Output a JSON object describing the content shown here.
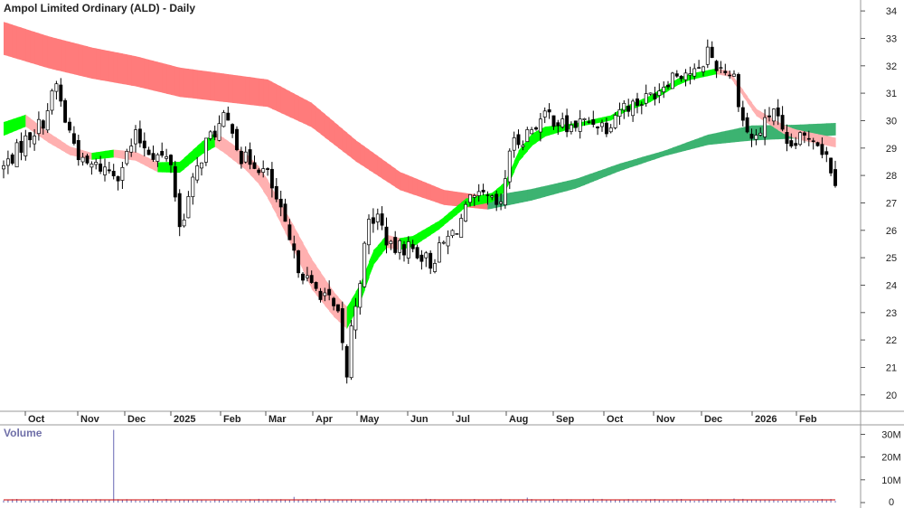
{
  "chart_data": {
    "type": "candlestick",
    "title": "Ampol Limited Ordinary (ALD) - Daily",
    "y_ticks": [
      20,
      21,
      22,
      23,
      24,
      25,
      26,
      27,
      28,
      29,
      30,
      31,
      32,
      33,
      34
    ],
    "ylim": [
      19.4,
      34.4
    ],
    "x_ticks": [
      "Oct",
      "Nov",
      "Dec",
      "2025",
      "Feb",
      "Mar",
      "Apr",
      "May",
      "Jun",
      "Jul",
      "Aug",
      "Sep",
      "Oct",
      "Nov",
      "Dec",
      "2026",
      "Feb"
    ],
    "price_path": [
      [
        0,
        28.3
      ],
      [
        5,
        29.3
      ],
      [
        9,
        30.0
      ],
      [
        12,
        31.3
      ],
      [
        14,
        30.0
      ],
      [
        18,
        28.4
      ],
      [
        22,
        28.3
      ],
      [
        26,
        28.1
      ],
      [
        30,
        29.4
      ],
      [
        34,
        28.8
      ],
      [
        38,
        28.5
      ],
      [
        40,
        26.1
      ],
      [
        43,
        27.7
      ],
      [
        46,
        29.2
      ],
      [
        50,
        30.0
      ],
      [
        52,
        29.8
      ],
      [
        54,
        28.6
      ],
      [
        57,
        28.5
      ],
      [
        60,
        28.0
      ],
      [
        63,
        26.6
      ],
      [
        66,
        25.0
      ],
      [
        70,
        23.9
      ],
      [
        73,
        23.7
      ],
      [
        76,
        22.8
      ],
      [
        78,
        20.7
      ],
      [
        79,
        22.4
      ],
      [
        81,
        24.3
      ],
      [
        83,
        26.3
      ],
      [
        85,
        26.5
      ],
      [
        88,
        25.3
      ],
      [
        92,
        25.4
      ],
      [
        95,
        25.1
      ],
      [
        97,
        24.8
      ],
      [
        100,
        25.5
      ],
      [
        103,
        26.1
      ],
      [
        106,
        27.0
      ],
      [
        109,
        27.2
      ],
      [
        111,
        27.0
      ],
      [
        113,
        26.8
      ],
      [
        115,
        29.0
      ],
      [
        118,
        29.4
      ],
      [
        121,
        29.9
      ],
      [
        124,
        30.2
      ],
      [
        128,
        29.7
      ],
      [
        131,
        29.9
      ],
      [
        134,
        30.0
      ],
      [
        137,
        29.8
      ],
      [
        140,
        30.5
      ],
      [
        143,
        30.6
      ],
      [
        146,
        30.8
      ],
      [
        149,
        31.2
      ],
      [
        152,
        31.7
      ],
      [
        155,
        31.8
      ],
      [
        158,
        31.7
      ],
      [
        160,
        32.6
      ],
      [
        162,
        32.0
      ],
      [
        164,
        31.9
      ],
      [
        166,
        31.6
      ],
      [
        168,
        30.0
      ],
      [
        170,
        29.3
      ],
      [
        172,
        29.6
      ],
      [
        175,
        30.5
      ],
      [
        178,
        28.9
      ],
      [
        181,
        29.3
      ],
      [
        184,
        29.5
      ],
      [
        187,
        28.7
      ],
      [
        189,
        27.9
      ]
    ],
    "bands": [
      {
        "name": "long-term",
        "up_color": "#3cb371",
        "down_color": "#ff7b7b",
        "center": [
          [
            0,
            33.0
          ],
          [
            10,
            32.5
          ],
          [
            20,
            32.1
          ],
          [
            30,
            31.8
          ],
          [
            40,
            31.4
          ],
          [
            50,
            31.2
          ],
          [
            60,
            31.0
          ],
          [
            70,
            30.2
          ],
          [
            80,
            28.9
          ],
          [
            90,
            27.8
          ],
          [
            100,
            27.2
          ],
          [
            110,
            27.0
          ],
          [
            120,
            27.3
          ],
          [
            130,
            27.7
          ],
          [
            140,
            28.3
          ],
          [
            150,
            28.8
          ],
          [
            160,
            29.3
          ],
          [
            170,
            29.55
          ],
          [
            180,
            29.6
          ],
          [
            190,
            29.7
          ]
        ],
        "width": [
          [
            0,
            1.2
          ],
          [
            60,
            1.0
          ],
          [
            100,
            0.55
          ],
          [
            130,
            0.35
          ],
          [
            150,
            0.2
          ],
          [
            170,
            0.55
          ],
          [
            190,
            0.45
          ]
        ]
      },
      {
        "name": "short-term",
        "up_color": "#00ff00",
        "down_color": "#ffb0b0",
        "center": [
          [
            0,
            29.7
          ],
          [
            5,
            30.0
          ],
          [
            10,
            29.4
          ],
          [
            15,
            28.9
          ],
          [
            20,
            28.7
          ],
          [
            25,
            28.8
          ],
          [
            30,
            28.7
          ],
          [
            35,
            28.3
          ],
          [
            40,
            28.3
          ],
          [
            45,
            29.0
          ],
          [
            48,
            29.3
          ],
          [
            50,
            29.1
          ],
          [
            55,
            28.5
          ],
          [
            58,
            28.0
          ],
          [
            60,
            27.5
          ],
          [
            65,
            26.0
          ],
          [
            70,
            24.4
          ],
          [
            75,
            23.3
          ],
          [
            78,
            22.8
          ],
          [
            81,
            23.7
          ],
          [
            84,
            25.0
          ],
          [
            87,
            25.6
          ],
          [
            90,
            25.5
          ],
          [
            93,
            25.6
          ],
          [
            96,
            25.9
          ],
          [
            99,
            26.2
          ],
          [
            102,
            26.6
          ],
          [
            105,
            27.0
          ],
          [
            108,
            27.1
          ],
          [
            111,
            27.2
          ],
          [
            114,
            27.6
          ],
          [
            117,
            28.7
          ],
          [
            120,
            29.3
          ],
          [
            123,
            29.6
          ],
          [
            126,
            29.7
          ],
          [
            129,
            29.8
          ],
          [
            132,
            29.9
          ],
          [
            135,
            30.0
          ],
          [
            138,
            30.1
          ],
          [
            141,
            30.4
          ],
          [
            144,
            30.6
          ],
          [
            147,
            30.8
          ],
          [
            150,
            31.1
          ],
          [
            153,
            31.4
          ],
          [
            156,
            31.6
          ],
          [
            159,
            31.7
          ],
          [
            162,
            31.8
          ],
          [
            165,
            31.7
          ],
          [
            168,
            31.0
          ],
          [
            171,
            30.3
          ],
          [
            174,
            30.0
          ],
          [
            177,
            29.7
          ],
          [
            180,
            29.5
          ],
          [
            183,
            29.4
          ],
          [
            186,
            29.3
          ],
          [
            189,
            29.2
          ]
        ],
        "width": [
          [
            0,
            0.5
          ],
          [
            20,
            0.25
          ],
          [
            40,
            0.4
          ],
          [
            62,
            0.7
          ],
          [
            70,
            1.1
          ],
          [
            78,
            0.8
          ],
          [
            85,
            0.5
          ],
          [
            100,
            0.3
          ],
          [
            113,
            0.35
          ],
          [
            120,
            0.45
          ],
          [
            130,
            0.15
          ],
          [
            150,
            0.25
          ],
          [
            165,
            0.2
          ],
          [
            180,
            0.35
          ],
          [
            189,
            0.35
          ]
        ]
      }
    ],
    "volume": {
      "label": "Volume",
      "y_ticks": [
        0,
        10000000,
        20000000,
        30000000
      ],
      "y_tick_labels": [
        "0",
        "10M",
        "20M",
        "30M"
      ],
      "ylim": [
        0,
        33000000
      ],
      "typical": 1200000,
      "spikes": [
        [
          25,
          32000000
        ],
        [
          66,
          2500000
        ],
        [
          119,
          2200000
        ],
        [
          166,
          1800000
        ]
      ],
      "ma_color": "#cc0000",
      "bar_color": "#8080c0"
    },
    "colors": {
      "bull_body": "#ffffff",
      "bear_body": "#000000",
      "wick": "#000000"
    }
  }
}
